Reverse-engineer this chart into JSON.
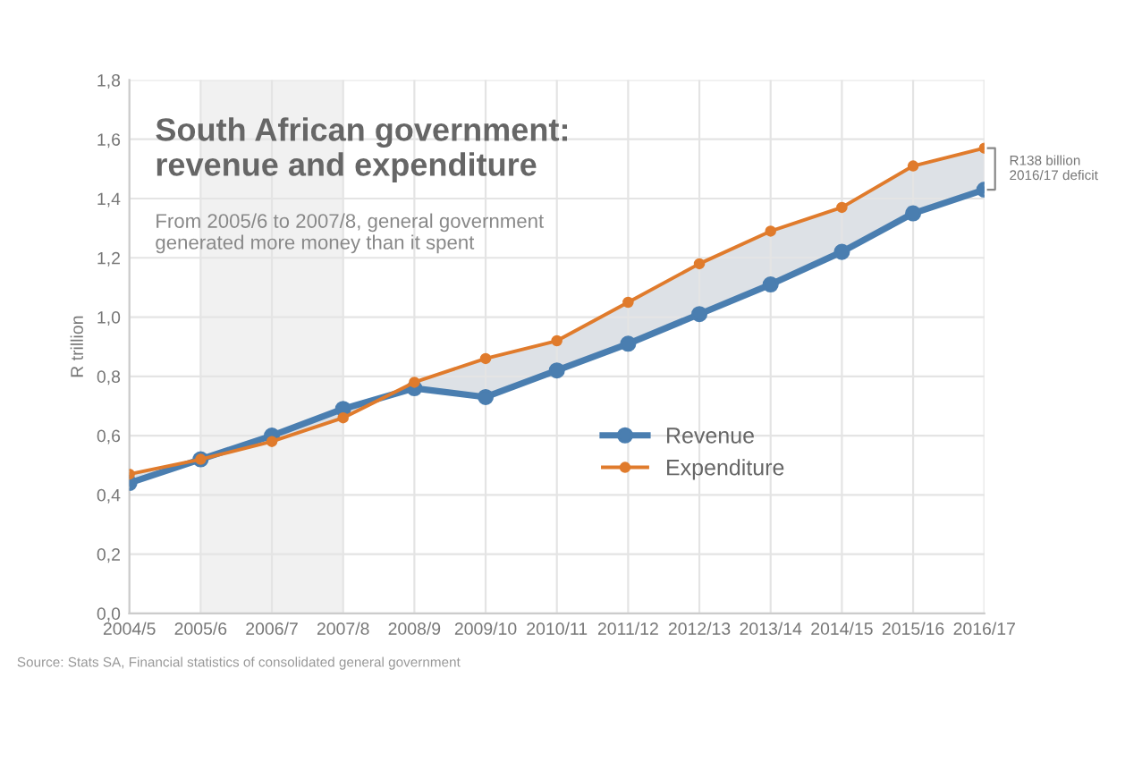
{
  "chart_data": {
    "type": "line",
    "title": "South African government:\nrevenue and expenditure",
    "subtitle": "From 2005/6 to 2007/8, general government\ngenerated more money than it spent",
    "ylabel": "R trillion",
    "categories": [
      "2004/5",
      "2005/6",
      "2006/7",
      "2007/8",
      "2008/9",
      "2009/10",
      "2010/11",
      "2011/12",
      "2012/13",
      "2013/14",
      "2014/15",
      "2015/16",
      "2016/17"
    ],
    "series": [
      {
        "name": "Revenue",
        "color": "#4a7eb0",
        "values": [
          0.44,
          0.52,
          0.6,
          0.69,
          0.76,
          0.73,
          0.82,
          0.91,
          1.01,
          1.11,
          1.22,
          1.35,
          1.43
        ]
      },
      {
        "name": "Expenditure",
        "color": "#e07b2c",
        "values": [
          0.47,
          0.52,
          0.58,
          0.66,
          0.78,
          0.86,
          0.92,
          1.05,
          1.18,
          1.29,
          1.37,
          1.51,
          1.57
        ],
        "lower": [
          0.44,
          0.52,
          0.6,
          0.69,
          0.76,
          0.73,
          0.82,
          0.91,
          1.01,
          1.11,
          1.22,
          1.35,
          1.43
        ],
        "upper": [
          0.47,
          0.52,
          0.58,
          0.66,
          0.78,
          0.86,
          0.92,
          1.05,
          1.18,
          1.29,
          1.37,
          1.51,
          1.57
        ]
      }
    ],
    "ylim": [
      0,
      1.8
    ],
    "yticks": [
      {
        "value": 0,
        "label": "0,0"
      },
      {
        "value": 0.2,
        "label": "0,2"
      },
      {
        "value": 0.4,
        "label": "0,4"
      },
      {
        "value": 0.6,
        "label": "0,6"
      },
      {
        "value": 0.8,
        "label": "0,8"
      },
      {
        "value": 1.0,
        "label": "1,0"
      },
      {
        "value": 1.2,
        "label": "1,2"
      },
      {
        "value": 1.4,
        "label": "1,4"
      },
      {
        "value": 1.6,
        "label": "1,6"
      },
      {
        "value": 1.8,
        "label": "1,8"
      }
    ],
    "bands": [
      {
        "axis": "x",
        "from": "2005/6",
        "to": "2007/8",
        "color": "#f1f1f1"
      }
    ],
    "annotations": [
      {
        "text": "R138 billion\n2016/17 deficit",
        "x": "2016/17",
        "y": 1.5
      },
      "Source: Stats SA, Financial statistics of consolidated general government"
    ],
    "grid": true,
    "legend": "center right",
    "marker": "circle",
    "line_style": "solid"
  }
}
